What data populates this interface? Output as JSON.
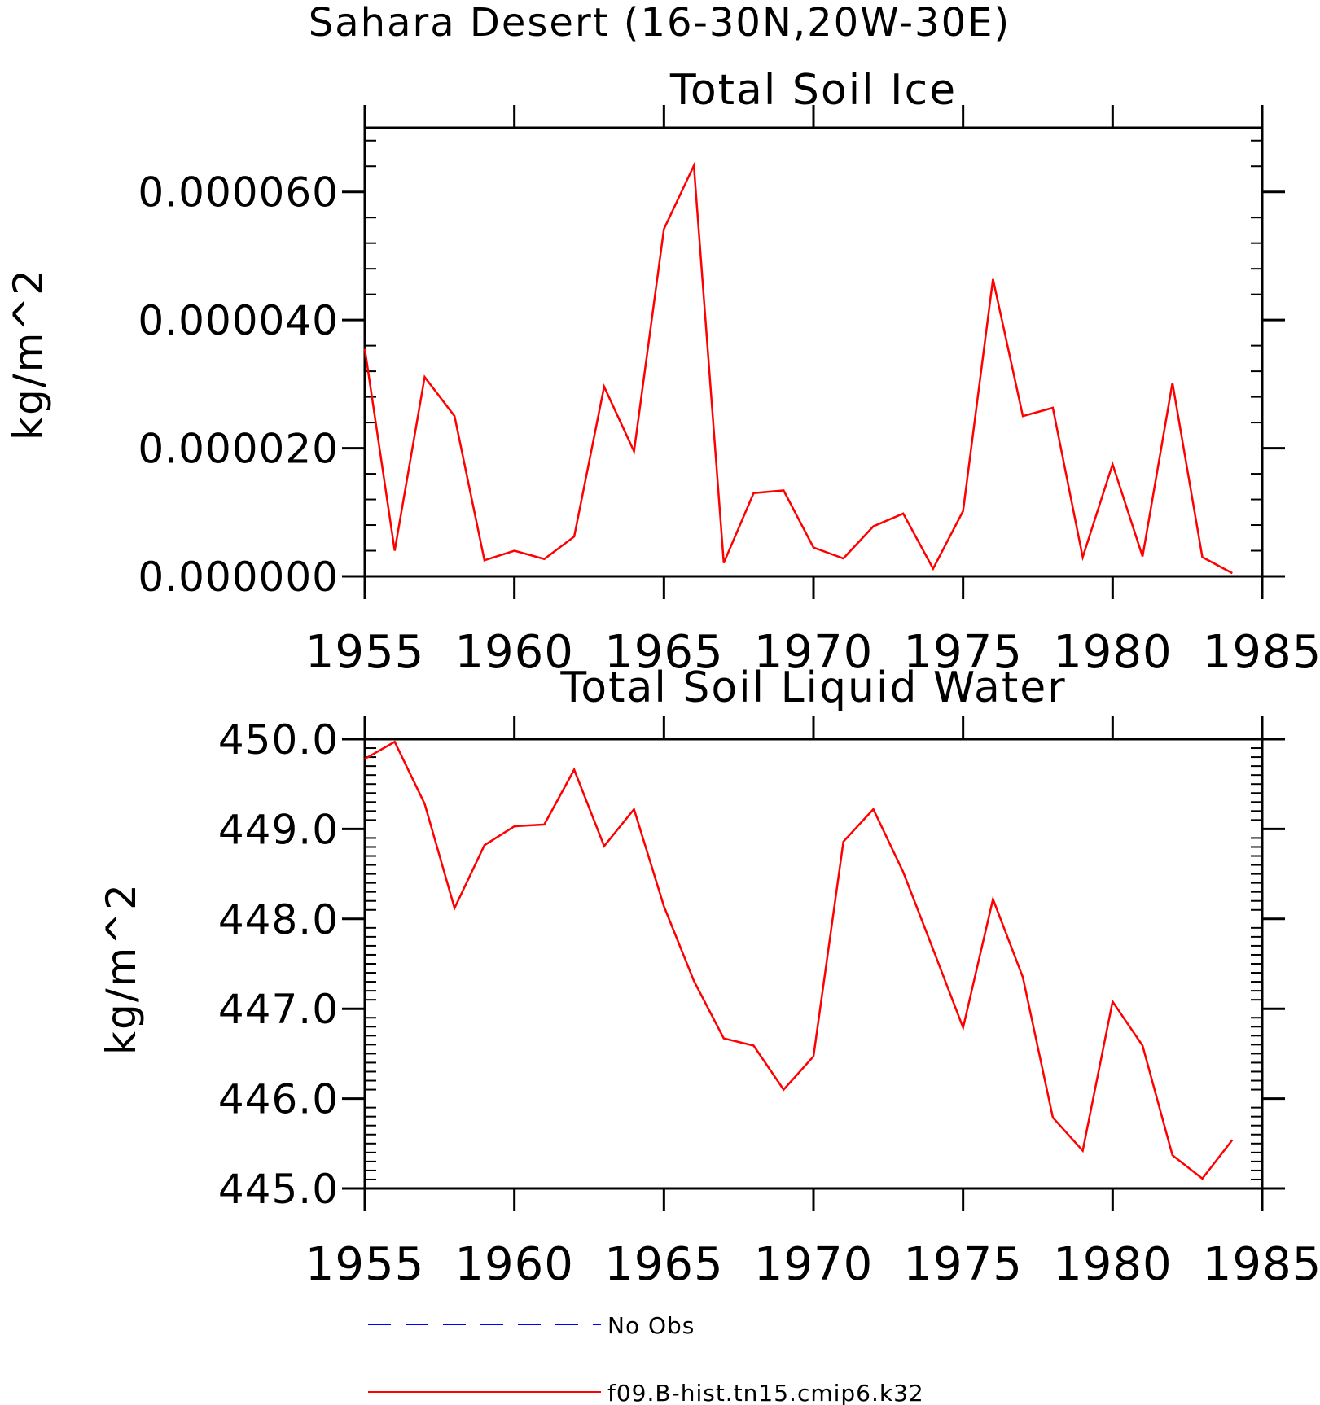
{
  "figure": {
    "title": "Sahara Desert (16-30N,20W-30E)"
  },
  "chart_data": [
    {
      "type": "line",
      "title": "Total Soil Ice",
      "xlabel": "",
      "ylabel": "kg/m^2",
      "xlim": [
        1955,
        1985
      ],
      "ylim": [
        0.0,
        7e-05
      ],
      "xticks": [
        1955,
        1960,
        1965,
        1970,
        1975,
        1980,
        1985
      ],
      "xtick_labels": [
        "1955",
        "1960",
        "1965",
        "1970",
        "1975",
        "1980",
        "1985"
      ],
      "yticks": [
        0.0,
        2e-05,
        4e-05,
        6e-05
      ],
      "ytick_labels": [
        "0.000000",
        "0.000020",
        "0.000040",
        "0.000060"
      ],
      "grid": false,
      "x": [
        1955,
        1956,
        1957,
        1958,
        1959,
        1960,
        1961,
        1962,
        1963,
        1964,
        1965,
        1966,
        1967,
        1968,
        1969,
        1970,
        1971,
        1972,
        1973,
        1974,
        1975,
        1976,
        1977,
        1978,
        1979,
        1980,
        1981,
        1982,
        1983,
        1984
      ],
      "series": [
        {
          "name": "f09.B-hist.tn15.cmip6.k32",
          "color": "#ff0000",
          "values": [
            3.55e-05,
            4e-06,
            3.11e-05,
            2.5e-05,
            2.5e-06,
            4e-06,
            2.7e-06,
            6.2e-06,
            2.96e-05,
            1.95e-05,
            5.42e-05,
            6.41e-05,
            2.1e-06,
            1.3e-05,
            1.34e-05,
            4.5e-06,
            2.8e-06,
            7.8e-06,
            9.8e-06,
            1.2e-06,
            1.02e-05,
            4.64e-05,
            2.5e-05,
            2.63e-05,
            3e-06,
            1.75e-05,
            3.1e-06,
            3.02e-05,
            3e-06,
            5e-07
          ]
        }
      ]
    },
    {
      "type": "line",
      "title": "Total Soil Liquid Water",
      "xlabel": "",
      "ylabel": "kg/m^2",
      "xlim": [
        1955,
        1985
      ],
      "ylim": [
        445.0,
        450.0
      ],
      "xticks": [
        1955,
        1960,
        1965,
        1970,
        1975,
        1980,
        1985
      ],
      "xtick_labels": [
        "1955",
        "1960",
        "1965",
        "1970",
        "1975",
        "1980",
        "1985"
      ],
      "yticks": [
        445.0,
        446.0,
        447.0,
        448.0,
        449.0,
        450.0
      ],
      "ytick_labels": [
        "445.0",
        "446.0",
        "447.0",
        "448.0",
        "449.0",
        "450.0"
      ],
      "grid": false,
      "x": [
        1955,
        1956,
        1957,
        1958,
        1959,
        1960,
        1961,
        1962,
        1963,
        1964,
        1965,
        1966,
        1967,
        1968,
        1969,
        1970,
        1971,
        1972,
        1973,
        1974,
        1975,
        1976,
        1977,
        1978,
        1979,
        1980,
        1981,
        1982,
        1983,
        1984
      ],
      "series": [
        {
          "name": "f09.B-hist.tn15.cmip6.k32",
          "color": "#ff0000",
          "values": [
            449.78,
            449.97,
            449.28,
            448.12,
            448.82,
            449.03,
            449.05,
            449.66,
            448.81,
            449.22,
            448.14,
            447.31,
            446.67,
            446.59,
            446.1,
            446.47,
            448.86,
            449.22,
            448.52,
            447.66,
            446.79,
            448.22,
            447.35,
            445.79,
            445.42,
            447.08,
            446.59,
            445.37,
            445.11,
            445.54
          ]
        }
      ]
    }
  ],
  "legend": {
    "placement": "bottom",
    "entries": [
      {
        "label": "No Obs",
        "color": "#0000ff",
        "style": "dashed"
      },
      {
        "label": "f09.B-hist.tn15.cmip6.k32",
        "color": "#ff0000",
        "style": "solid"
      }
    ]
  }
}
